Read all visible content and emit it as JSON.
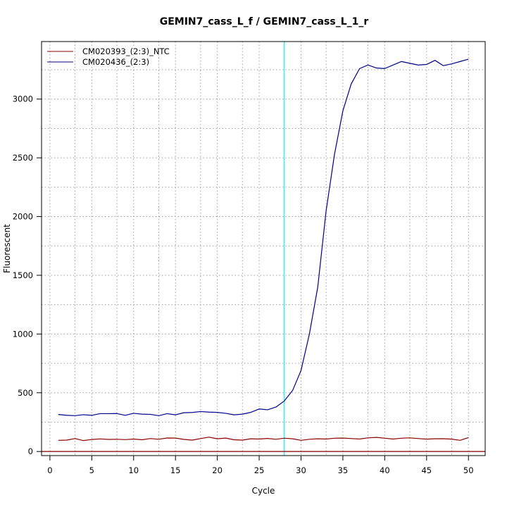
{
  "chart_data": {
    "type": "line",
    "title": "GEMIN7_cass_L_f / GEMIN7_cass_L_1_r",
    "xlabel": "Cycle",
    "ylabel": "Fluorescent",
    "xlim": [
      -1.0,
      52.0
    ],
    "ylim": [
      -35,
      3490
    ],
    "x_ticks": [
      0,
      5,
      10,
      15,
      20,
      25,
      30,
      35,
      40,
      45,
      50
    ],
    "y_ticks": [
      0,
      500,
      1000,
      1500,
      2000,
      2500,
      3000
    ],
    "grid": true,
    "grid_x_minor": [
      3,
      8,
      13,
      18,
      23,
      28,
      33,
      38,
      43,
      48
    ],
    "grid_y_minor": [
      250,
      750,
      1250,
      1750,
      2250,
      2750,
      3250
    ],
    "threshold_cycle": 28,
    "threshold_color": "#00ffff",
    "baseline_value": 0,
    "baseline_color": "#8b0000",
    "legend_position": "top-left",
    "x": [
      1,
      2,
      3,
      4,
      5,
      6,
      7,
      8,
      9,
      10,
      11,
      12,
      13,
      14,
      15,
      16,
      17,
      18,
      19,
      20,
      21,
      22,
      23,
      24,
      25,
      26,
      27,
      28,
      29,
      30,
      31,
      32,
      33,
      34,
      35,
      36,
      37,
      38,
      39,
      40,
      41,
      42,
      43,
      44,
      45,
      46,
      47,
      48,
      49,
      50
    ],
    "series": [
      {
        "name": "CM020393_(2:3)_NTC",
        "color": "#8b0000",
        "values": [
          95,
          97,
          110,
          93,
          102,
          107,
          103,
          104,
          101,
          106,
          100,
          110,
          104,
          115,
          114,
          103,
          97,
          110,
          122,
          108,
          114,
          100,
          97,
          108,
          106,
          111,
          104,
          113,
          108,
          95,
          104,
          108,
          106,
          113,
          114,
          110,
          106,
          116,
          120,
          113,
          106,
          113,
          116,
          110,
          105,
          108,
          109,
          105,
          95,
          118
        ]
      },
      {
        "name": "CM020436_(2:3)",
        "color": "#00008b",
        "values": [
          315,
          308,
          305,
          313,
          308,
          322,
          322,
          323,
          308,
          325,
          318,
          316,
          305,
          322,
          312,
          330,
          332,
          340,
          335,
          333,
          325,
          312,
          318,
          333,
          362,
          355,
          378,
          430,
          520,
          690,
          1000,
          1400,
          2050,
          2530,
          2900,
          3130,
          3260,
          3290,
          3265,
          3260,
          3290,
          3320,
          3305,
          3290,
          3295,
          3330,
          3285,
          3300,
          3320,
          3340
        ]
      }
    ]
  }
}
